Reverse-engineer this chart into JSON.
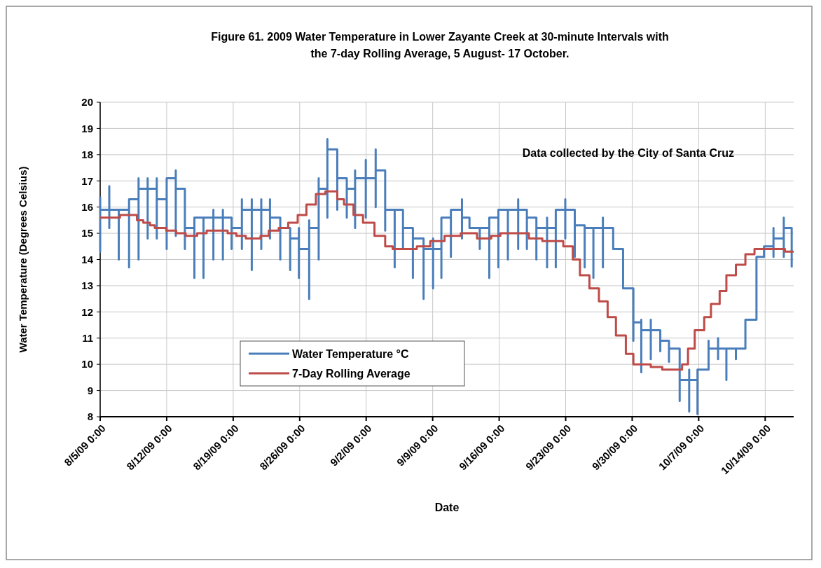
{
  "chart_data": {
    "type": "step",
    "title": "Figure 61. 2009 Water Temperature in Lower Zayante Creek at 30-minute Intervals with\nthe 7-day Rolling Average, 5 August- 17 October.",
    "xlabel": "Date",
    "ylabel": "Water Temperature (Degrees Celsius)",
    "annotations": [
      "Data collected by the City of Santa Cruz"
    ],
    "xlim": [
      "2009-08-05T00:00",
      "2009-10-17T00:00"
    ],
    "xticks": [
      {
        "value": "2009-08-05T00:00",
        "label": "8/5/09 0:00"
      },
      {
        "value": "2009-08-12T00:00",
        "label": "8/12/09 0:00"
      },
      {
        "value": "2009-08-19T00:00",
        "label": "8/19/09 0:00"
      },
      {
        "value": "2009-08-26T00:00",
        "label": "8/26/09 0:00"
      },
      {
        "value": "2009-09-02T00:00",
        "label": "9/2/09 0:00"
      },
      {
        "value": "2009-09-09T00:00",
        "label": "9/9/09 0:00"
      },
      {
        "value": "2009-09-16T00:00",
        "label": "9/16/09 0:00"
      },
      {
        "value": "2009-09-23T00:00",
        "label": "9/23/09 0:00"
      },
      {
        "value": "2009-09-30T00:00",
        "label": "9/30/09 0:00"
      },
      {
        "value": "2009-10-07T00:00",
        "label": "10/7/09 0:00"
      },
      {
        "value": "2009-10-14T00:00",
        "label": "10/14/09 0:00"
      }
    ],
    "ylim": [
      8,
      20
    ],
    "yticks": [
      8,
      9,
      10,
      11,
      12,
      13,
      14,
      15,
      16,
      17,
      18,
      19,
      20
    ],
    "grid": true,
    "legend": "bottom left",
    "line_style": "solid",
    "series": [
      {
        "name": "Water Temperature °C",
        "color": "#4a7ebb",
        "type": "step",
        "x": [
          "2009-08-05T00:00",
          "2009-08-05T00:00",
          "2009-08-05T00:00",
          "2009-08-05T23:00",
          "2009-08-05T23:00",
          "2009-08-05T23:00",
          "2009-08-06T23:00",
          "2009-08-06T23:00",
          "2009-08-06T23:00",
          "2009-08-08T01:00",
          "2009-08-08T01:00",
          "2009-08-08T01:00",
          "2009-08-09T01:00",
          "2009-08-09T01:00",
          "2009-08-09T01:00",
          "2009-08-10T00:00",
          "2009-08-10T00:00",
          "2009-08-10T00:00",
          "2009-08-10T23:00",
          "2009-08-10T23:00",
          "2009-08-10T23:00",
          "2009-08-12T00:00",
          "2009-08-12T00:00",
          "2009-08-12T00:00",
          "2009-08-12T23:00",
          "2009-08-12T23:00",
          "2009-08-12T23:00",
          "2009-08-13T22:00",
          "2009-08-13T22:00",
          "2009-08-13T22:00",
          "2009-08-14T22:00",
          "2009-08-14T22:00",
          "2009-08-14T22:00",
          "2009-08-15T21:00",
          "2009-08-15T21:00",
          "2009-08-15T21:00",
          "2009-08-16T22:00",
          "2009-08-16T22:00",
          "2009-08-16T22:00",
          "2009-08-17T22:00",
          "2009-08-17T22:00",
          "2009-08-17T22:00",
          "2009-08-18T20:00",
          "2009-08-18T20:00",
          "2009-08-18T20:00",
          "2009-08-19T22:00",
          "2009-08-19T22:00",
          "2009-08-19T22:00",
          "2009-08-20T23:00",
          "2009-08-20T23:00",
          "2009-08-20T23:00",
          "2009-08-21T23:00",
          "2009-08-21T23:00",
          "2009-08-21T23:00",
          "2009-08-22T21:00",
          "2009-08-22T21:00",
          "2009-08-22T21:00",
          "2009-08-23T23:00",
          "2009-08-23T23:00",
          "2009-08-23T23:00",
          "2009-08-25T00:00",
          "2009-08-25T00:00",
          "2009-08-25T00:00",
          "2009-08-25T22:00",
          "2009-08-25T22:00",
          "2009-08-25T22:00",
          "2009-08-27T00:00",
          "2009-08-27T00:00",
          "2009-08-27T00:00",
          "2009-08-28T00:00",
          "2009-08-28T00:00",
          "2009-08-28T00:00",
          "2009-08-28T22:00",
          "2009-08-28T22:00",
          "2009-08-28T22:00",
          "2009-08-29T23:00",
          "2009-08-29T23:00",
          "2009-08-29T23:00",
          "2009-08-30T23:00",
          "2009-08-30T23:00",
          "2009-08-30T23:00",
          "2009-08-31T20:00",
          "2009-08-31T20:00",
          "2009-08-31T20:00",
          "2009-09-01T23:00",
          "2009-09-01T23:00",
          "2009-09-01T23:00",
          "2009-09-03T00:00",
          "2009-09-03T00:00",
          "2009-09-03T00:00",
          "2009-09-04T00:00",
          "2009-09-04T00:00",
          "2009-09-04T00:00",
          "2009-09-05T00:00",
          "2009-09-05T00:00",
          "2009-09-05T00:00",
          "2009-09-05T21:00",
          "2009-09-05T21:00",
          "2009-09-05T21:00",
          "2009-09-06T22:00",
          "2009-09-06T22:00",
          "2009-09-06T22:00",
          "2009-09-08T01:00",
          "2009-09-08T01:00",
          "2009-09-08T01:00",
          "2009-09-09T01:00",
          "2009-09-09T01:00",
          "2009-09-09T01:00",
          "2009-09-09T22:00",
          "2009-09-09T22:00",
          "2009-09-09T22:00",
          "2009-09-10T22:00",
          "2009-09-10T22:00",
          "2009-09-10T22:00",
          "2009-09-12T02:00",
          "2009-09-12T02:00",
          "2009-09-12T02:00",
          "2009-09-12T21:00",
          "2009-09-12T21:00",
          "2009-09-12T21:00",
          "2009-09-13T23:00",
          "2009-09-13T23:00",
          "2009-09-13T23:00",
          "2009-09-14T23:00",
          "2009-09-14T23:00",
          "2009-09-14T23:00",
          "2009-09-15T22:00",
          "2009-09-15T22:00",
          "2009-09-15T22:00",
          "2009-09-16T22:00",
          "2009-09-16T22:00",
          "2009-09-16T22:00",
          "2009-09-18T00:00",
          "2009-09-18T00:00",
          "2009-09-18T00:00",
          "2009-09-18T22:00",
          "2009-09-18T22:00",
          "2009-09-18T22:00",
          "2009-09-19T22:00",
          "2009-09-19T22:00",
          "2009-09-19T22:00",
          "2009-09-21T01:00",
          "2009-09-21T01:00",
          "2009-09-21T01:00",
          "2009-09-21T23:00",
          "2009-09-21T23:00",
          "2009-09-21T23:00",
          "2009-09-22T23:00",
          "2009-09-22T23:00",
          "2009-09-22T23:00",
          "2009-09-23T23:00",
          "2009-09-23T23:00",
          "2009-09-23T23:00",
          "2009-09-25T00:00",
          "2009-09-25T00:00",
          "2009-09-25T00:00",
          "2009-09-25T22:00",
          "2009-09-25T22:00",
          "2009-09-25T22:00",
          "2009-09-26T22:00",
          "2009-09-26T22:00",
          "2009-09-26T22:00",
          "2009-09-28T00:00",
          "2009-09-28T00:00",
          "2009-09-28T00:00",
          "2009-09-29T01:00",
          "2009-09-29T01:00",
          "2009-09-29T01:00",
          "2009-09-30T03:00",
          "2009-09-30T03:00",
          "2009-09-30T03:00",
          "2009-09-30T23:00",
          "2009-09-30T23:00",
          "2009-09-30T23:00",
          "2009-10-01T23:00",
          "2009-10-01T23:00",
          "2009-10-01T23:00",
          "2009-10-02T23:00",
          "2009-10-02T23:00",
          "2009-10-02T23:00",
          "2009-10-03T21:00",
          "2009-10-03T21:00",
          "2009-10-03T21:00",
          "2009-10-05T00:00",
          "2009-10-05T00:00",
          "2009-10-05T00:00",
          "2009-10-06T00:00",
          "2009-10-06T00:00",
          "2009-10-06T00:00",
          "2009-10-06T21:00",
          "2009-10-06T21:00",
          "2009-10-06T21:00",
          "2009-10-08T01:00",
          "2009-10-08T01:00",
          "2009-10-08T01:00",
          "2009-10-09T01:00",
          "2009-10-09T01:00",
          "2009-10-09T01:00",
          "2009-10-09T22:00",
          "2009-10-09T22:00",
          "2009-10-09T22:00",
          "2009-10-10T22:00",
          "2009-10-10T22:00",
          "2009-10-10T22:00",
          "2009-10-11T22:00",
          "2009-10-11T22:00",
          "2009-10-11T22:00",
          "2009-10-13T02:00",
          "2009-10-13T02:00",
          "2009-10-13T02:00",
          "2009-10-13T21:00",
          "2009-10-13T21:00",
          "2009-10-13T21:00",
          "2009-10-14T21:00",
          "2009-10-14T21:00",
          "2009-10-14T21:00",
          "2009-10-15T23:00",
          "2009-10-15T23:00",
          "2009-10-15T23:00",
          "2009-10-16T19:00",
          "2009-10-16T19:00"
        ],
        "values": [
          16.4,
          14.3,
          15.9,
          16.8,
          15.2,
          15.9,
          15.9,
          14.0,
          15.9,
          16.3,
          13.7,
          16.3,
          17.1,
          14.0,
          16.7,
          17.1,
          14.8,
          16.7,
          17.1,
          14.8,
          16.3,
          17.1,
          14.4,
          17.1,
          17.4,
          14.9,
          16.7,
          16.7,
          14.4,
          15.2,
          15.6,
          13.3,
          15.6,
          15.6,
          13.3,
          15.6,
          15.9,
          14.0,
          15.6,
          15.9,
          14.0,
          15.6,
          15.6,
          14.4,
          15.2,
          16.3,
          14.4,
          15.9,
          16.3,
          13.6,
          15.9,
          16.3,
          14.4,
          15.9,
          16.3,
          14.8,
          15.6,
          15.6,
          14.0,
          15.2,
          15.2,
          13.6,
          14.8,
          15.2,
          13.3,
          14.4,
          15.5,
          12.5,
          15.2,
          17.1,
          14.0,
          16.7,
          18.6,
          15.6,
          18.2,
          17.9,
          15.9,
          17.1,
          17.1,
          15.6,
          16.7,
          17.4,
          15.2,
          17.1,
          17.8,
          15.6,
          17.1,
          18.2,
          16.0,
          17.4,
          17.4,
          15.1,
          15.9,
          15.9,
          13.7,
          15.9,
          15.9,
          14.4,
          15.2,
          15.2,
          13.3,
          14.8,
          14.8,
          12.5,
          14.4,
          14.8,
          12.9,
          14.4,
          15.6,
          13.3,
          15.6,
          15.6,
          14.1,
          15.9,
          16.3,
          14.8,
          15.6,
          15.6,
          15.2,
          15.2,
          15.2,
          14.4,
          15.2,
          15.2,
          13.3,
          15.6,
          15.6,
          13.7,
          15.9,
          15.9,
          14.0,
          15.9,
          16.3,
          14.4,
          15.9,
          15.9,
          14.4,
          15.6,
          15.6,
          14.0,
          15.2,
          15.6,
          13.7,
          15.2,
          15.6,
          13.7,
          15.9,
          16.3,
          14.8,
          15.9,
          15.9,
          14.1,
          15.3,
          14.8,
          13.7,
          15.2,
          15.2,
          13.3,
          15.2,
          15.6,
          13.7,
          15.2,
          15.2,
          14.4,
          14.4,
          14.4,
          12.9,
          12.9,
          12.5,
          10.9,
          11.6,
          11.7,
          9.7,
          11.3,
          11.7,
          10.2,
          11.3,
          11.3,
          10.5,
          10.9,
          10.9,
          10.1,
          10.6,
          10.6,
          8.6,
          9.4,
          9.8,
          8.2,
          9.4,
          9.4,
          8.1,
          9.8,
          10.9,
          9.8,
          10.6,
          11.0,
          10.2,
          10.6,
          10.6,
          9.4,
          10.6,
          10.6,
          10.2,
          10.6,
          11.7,
          10.6,
          11.7,
          14.1,
          11.7,
          14.1,
          14.5,
          14.1,
          14.5,
          15.2,
          14.1,
          14.8,
          15.6,
          14.1,
          15.2,
          15.2,
          13.7
        ]
      },
      {
        "name": "7-Day Rolling Average",
        "color": "#be4b48",
        "type": "step",
        "x": [
          "2009-08-05T00:00",
          "2009-08-07T02:00",
          "2009-08-08T21:00",
          "2009-08-09T13:00",
          "2009-08-10T06:00",
          "2009-08-10T18:00",
          "2009-08-11T23:00",
          "2009-08-13T00:00",
          "2009-08-14T00:00",
          "2009-08-15T05:00",
          "2009-08-16T05:00",
          "2009-08-18T10:00",
          "2009-08-19T08:00",
          "2009-08-20T08:00",
          "2009-08-21T21:00",
          "2009-08-22T18:00",
          "2009-08-23T19:00",
          "2009-08-24T19:00",
          "2009-08-25T19:00",
          "2009-08-26T17:00",
          "2009-08-27T17:00",
          "2009-08-28T17:00",
          "2009-08-29T23:00",
          "2009-08-30T16:00",
          "2009-08-31T16:00",
          "2009-09-01T16:00",
          "2009-09-02T21:00",
          "2009-09-04T00:00",
          "2009-09-04T19:00",
          "2009-09-06T08:00",
          "2009-09-07T08:00",
          "2009-09-08T18:00",
          "2009-09-10T06:00",
          "2009-09-11T23:00",
          "2009-09-13T16:00",
          "2009-09-15T04:00",
          "2009-09-16T03:00",
          "2009-09-17T20:00",
          "2009-09-19T03:00",
          "2009-09-20T13:00",
          "2009-09-22T01:00",
          "2009-09-22T18:00",
          "2009-09-23T18:00",
          "2009-09-24T12:00",
          "2009-09-25T12:00",
          "2009-09-26T12:00",
          "2009-09-27T10:00",
          "2009-09-28T07:00",
          "2009-09-29T08:00",
          "2009-09-30T03:00",
          "2009-10-01T23:00",
          "2009-10-03T04:00",
          "2009-10-05T06:00",
          "2009-10-05T21:00",
          "2009-10-06T14:00",
          "2009-10-07T14:00",
          "2009-10-08T07:00",
          "2009-10-09T05:00",
          "2009-10-09T22:00",
          "2009-10-10T22:00",
          "2009-10-11T22:00",
          "2009-10-12T21:00",
          "2009-10-14T09:00",
          "2009-10-15T06:00",
          "2009-10-16T02:00",
          "2009-10-17T00:00"
        ],
        "values": [
          15.6,
          15.7,
          15.5,
          15.4,
          15.3,
          15.2,
          15.1,
          15.0,
          14.9,
          15.0,
          15.1,
          15.0,
          14.9,
          14.8,
          14.9,
          15.1,
          15.2,
          15.4,
          15.7,
          16.1,
          16.5,
          16.6,
          16.3,
          16.1,
          15.7,
          15.4,
          14.9,
          14.5,
          14.4,
          14.4,
          14.5,
          14.7,
          14.9,
          15.0,
          14.8,
          14.9,
          15.0,
          15.0,
          14.8,
          14.7,
          14.7,
          14.5,
          14.0,
          13.4,
          12.9,
          12.4,
          11.8,
          11.1,
          10.4,
          10.0,
          9.9,
          9.8,
          10.0,
          10.6,
          11.3,
          11.8,
          12.3,
          12.8,
          13.4,
          13.8,
          14.2,
          14.4,
          14.4,
          14.4,
          14.3,
          14.3
        ]
      }
    ]
  }
}
